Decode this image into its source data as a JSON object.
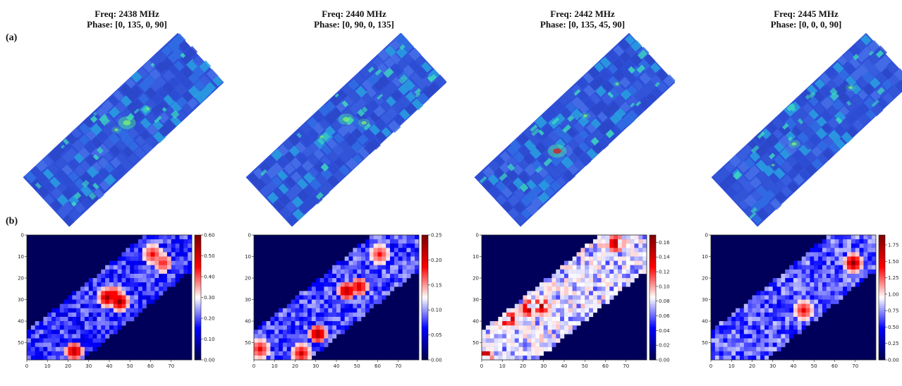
{
  "panel_labels": {
    "a": "(a)",
    "b": "(b)"
  },
  "columns": [
    {
      "freq": "Freq: 2438 MHz",
      "phase": "Phase: [0, 135, 0, 90]"
    },
    {
      "freq": "Freq: 2440 MHz",
      "phase": "Phase: [0, 90, 0, 135]"
    },
    {
      "freq": "Freq: 2442 MHz",
      "phase": "Phase: [0, 135, 45, 90]"
    },
    {
      "freq": "Freq: 2445 MHz",
      "phase": "Phase: [0, 0, 0, 90]"
    }
  ],
  "colors": {
    "map_background": "#00005a",
    "sim_base": "#2f4fd8",
    "sim_hot": "#3cd6c0",
    "sim_peak": "#d22020"
  },
  "chart_data": [
    {
      "type": "heatmap",
      "colormap": "seismic",
      "x_ticks": [
        0,
        10,
        20,
        30,
        40,
        50,
        60,
        70
      ],
      "y_ticks": [
        0,
        10,
        20,
        30,
        40,
        50
      ],
      "xlim": [
        0,
        80
      ],
      "ylim": [
        0,
        58
      ],
      "colorbar_ticks": [
        "0.00",
        "0.10",
        "0.20",
        "0.30",
        "0.40",
        "0.50",
        "0.60"
      ],
      "vmax": 0.6,
      "hotspots": [
        {
          "x": 38,
          "y": 28,
          "level": 0.9
        },
        {
          "x": 44,
          "y": 30,
          "level": 0.95
        },
        {
          "x": 41,
          "y": 27,
          "level": 0.7
        },
        {
          "x": 22,
          "y": 53,
          "level": 0.85
        },
        {
          "x": 60,
          "y": 8,
          "level": 0.55
        },
        {
          "x": 65,
          "y": 12,
          "level": 0.5
        }
      ]
    },
    {
      "type": "heatmap",
      "colormap": "seismic",
      "x_ticks": [
        0,
        10,
        20,
        30,
        40,
        50,
        60,
        70
      ],
      "y_ticks": [
        0,
        10,
        20,
        30,
        40,
        50
      ],
      "xlim": [
        0,
        80
      ],
      "ylim": [
        0,
        58
      ],
      "colorbar_ticks": [
        "0.00",
        "0.05",
        "0.10",
        "0.15",
        "0.20",
        "0.25"
      ],
      "vmax": 0.25,
      "hotspots": [
        {
          "x": 44,
          "y": 25,
          "level": 0.9
        },
        {
          "x": 50,
          "y": 23,
          "level": 0.75
        },
        {
          "x": 30,
          "y": 45,
          "level": 0.95
        },
        {
          "x": 22,
          "y": 54,
          "level": 0.7
        },
        {
          "x": 2,
          "y": 52,
          "level": 0.6
        },
        {
          "x": 60,
          "y": 8,
          "level": 0.5
        }
      ]
    },
    {
      "type": "heatmap",
      "colormap": "seismic",
      "x_ticks": [
        0,
        10,
        20,
        30,
        40,
        50,
        60,
        70
      ],
      "y_ticks": [
        0,
        10,
        20,
        30,
        40,
        50
      ],
      "xlim": [
        0,
        80
      ],
      "ylim": [
        0,
        58
      ],
      "colorbar_ticks": [
        "0.00",
        "0.02",
        "0.04",
        "0.06",
        "0.08",
        "0.10",
        "0.12",
        "0.14",
        "0.16"
      ],
      "vmax": 0.17,
      "hotspots": [
        {
          "x": 22,
          "y": 33,
          "level": 0.95
        },
        {
          "x": 28,
          "y": 32,
          "level": 0.9
        },
        {
          "x": 10,
          "y": 38,
          "level": 0.85
        },
        {
          "x": 64,
          "y": 3,
          "level": 0.9
        },
        {
          "x": 1,
          "y": 54,
          "level": 0.85
        },
        {
          "x": 14,
          "y": 38,
          "level": 0.7
        }
      ]
    },
    {
      "type": "heatmap",
      "colormap": "seismic",
      "x_ticks": [
        0,
        10,
        20,
        30,
        40,
        50,
        60,
        70
      ],
      "y_ticks": [
        0,
        10,
        20,
        30,
        40,
        50
      ],
      "xlim": [
        0,
        80
      ],
      "ylim": [
        0,
        58
      ],
      "colorbar_ticks": [
        "0.00",
        "0.25",
        "0.50",
        "0.75",
        "1.00",
        "1.25",
        "1.50",
        "1.75"
      ],
      "vmax": 1.9,
      "hotspots": [
        {
          "x": 68,
          "y": 12,
          "level": 0.95
        },
        {
          "x": 44,
          "y": 34,
          "level": 0.6
        }
      ]
    }
  ]
}
